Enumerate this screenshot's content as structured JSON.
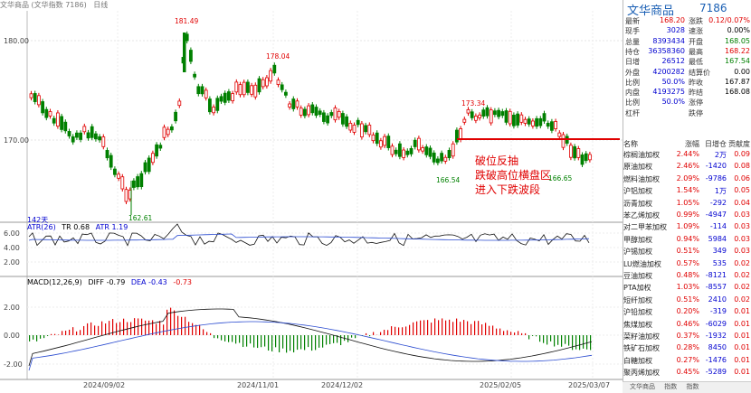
{
  "header": {
    "items": [
      "文华商品 (文华指数 7186)",
      "日线"
    ]
  },
  "main_axis": {
    "y_labels": [
      "180.00",
      "170.00"
    ]
  },
  "price_annotations": {
    "high1": "181.49",
    "high2": "178.04",
    "high3": "173.34",
    "low1": "162.61",
    "low2": "166.54",
    "low3": "166.65"
  },
  "callout": {
    "line1": "破位反抽",
    "line2": "跌破高位横盘区",
    "line3": "进入下跌波段"
  },
  "volume_label": "142天",
  "atr_panel": {
    "label": "ATR(26)",
    "tr_label": "TR 0.68",
    "atr_label": "ATR 1.19",
    "y_labels": [
      "6.00",
      "4.00",
      "2.00"
    ]
  },
  "macd_panel": {
    "label": "MACD(12,26,9)",
    "diff_label": "DIFF -0.79",
    "dea_label": "DEA -0.43",
    "macd_label": "-0.73",
    "y_labels": [
      "2.00",
      "0.00",
      "-2.00"
    ]
  },
  "x_axis": {
    "labels": [
      "2024/09/02",
      "2024/11/01",
      "2024/12/02",
      "2025/02/05",
      "2025/03/07"
    ]
  },
  "colors": {
    "up": "#e00000",
    "down": "#008000",
    "accent": "#1a5fb4"
  },
  "side": {
    "name": "文华商品",
    "code": "7186",
    "quotes": [
      {
        "l1": "最新",
        "v1": "168.20",
        "c1": "red",
        "l2": "涨跌",
        "v2": "0.12/0.07%",
        "c2": "red"
      },
      {
        "l1": "现手",
        "v1": "3028",
        "c1": "blue",
        "l2": "速涨",
        "v2": "0.00%",
        "c2": "blk"
      },
      {
        "l1": "总量",
        "v1": "8393434",
        "c1": "blue",
        "l2": "开盘",
        "v2": "168.05",
        "c2": "green"
      },
      {
        "l1": "持仓",
        "v1": "36358360",
        "c1": "blue",
        "l2": "最高",
        "v2": "168.22",
        "c2": "red"
      },
      {
        "l1": "日增",
        "v1": "26512",
        "c1": "blue",
        "l2": "最低",
        "v2": "167.54",
        "c2": "green"
      },
      {
        "l1": "外盘",
        "v1": "4200282",
        "c1": "blue",
        "l2": "结算价",
        "v2": "0.00",
        "c2": "blk"
      },
      {
        "l1": "比例",
        "v1": "50.0%",
        "c1": "blue",
        "l2": "昨收",
        "v2": "167.87",
        "c2": "blk"
      },
      {
        "l1": "内盘",
        "v1": "4193275",
        "c1": "blue",
        "l2": "昨结",
        "v2": "168.08",
        "c2": "blk"
      },
      {
        "l1": "比例",
        "v1": "50.0%",
        "c1": "blue",
        "l2": "涨停",
        "v2": "",
        "c2": "blk"
      },
      {
        "l1": "杠杆",
        "v1": "",
        "c1": "blue",
        "l2": "跌停",
        "v2": "",
        "c2": "blk"
      }
    ],
    "table_header": [
      "名称",
      "涨幅",
      "日增仓",
      "贡献度"
    ],
    "rows": [
      [
        "棕榈油加权",
        "2.44%",
        "2万",
        "0.09"
      ],
      [
        "原油加权",
        "2.46%",
        "-1420",
        "0.08"
      ],
      [
        "燃料油加权",
        "2.09%",
        "-9786",
        "0.06"
      ],
      [
        "沪铝加权",
        "1.54%",
        "1万",
        "0.05"
      ],
      [
        "沥青加权",
        "1.05%",
        "-292",
        "0.04"
      ],
      [
        "苯乙烯加权",
        "0.99%",
        "-4947",
        "0.03"
      ],
      [
        "对二甲苯加权",
        "1.09%",
        "-114",
        "0.03"
      ],
      [
        "甲醇加权",
        "0.94%",
        "5984",
        "0.03"
      ],
      [
        "沪锡加权",
        "0.51%",
        "349",
        "0.03"
      ],
      [
        "LU燃油加权",
        "0.57%",
        "535",
        "0.02"
      ],
      [
        "豆油加权",
        "0.48%",
        "-8121",
        "0.02"
      ],
      [
        "PTA加权",
        "1.03%",
        "-8557",
        "0.02"
      ],
      [
        "短纤加权",
        "0.51%",
        "2410",
        "0.02"
      ],
      [
        "沪铅加权",
        "0.20%",
        "-319",
        "0.01"
      ],
      [
        "焦煤加权",
        "0.46%",
        "-6029",
        "0.01"
      ],
      [
        "菜籽油加权",
        "0.37%",
        "-1932",
        "0.01"
      ],
      [
        "铁矿石加权",
        "0.28%",
        "8450",
        "0.01"
      ],
      [
        "白糖加权",
        "0.27%",
        "-1476",
        "0.01"
      ],
      [
        "聚丙烯加权",
        "0.45%",
        "-5289",
        "0.01"
      ]
    ],
    "tabs": [
      "文华商品",
      "指数",
      "指数"
    ]
  }
}
